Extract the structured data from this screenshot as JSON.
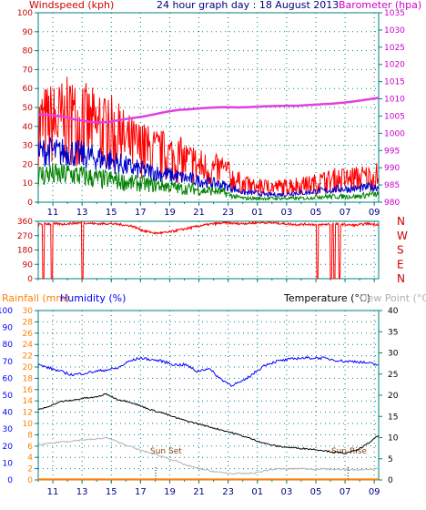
{
  "header": {
    "windspeed_label": "Windspeed (kph)",
    "title": "24 hour graph day : 18 August 2013",
    "barometer_label": "Barometer (hpa)"
  },
  "legend_bottom": {
    "rainfall": "Rainfall (mm)",
    "humidity": "Humidity (%)",
    "temperature": "Temperature (°C)",
    "dewpoint": "Dew Point (°C)"
  },
  "annotations": {
    "sun_set": "Sun Set",
    "sun_rise": "Sun Rise"
  },
  "colors": {
    "red": "#ff0000",
    "blue": "#0000cc",
    "green": "#008000",
    "magenta": "#e040e0",
    "axis_left": "#cc0000",
    "axis_right": "#cc00cc",
    "rain": "#ff8000",
    "humidity": "#0000ff",
    "temperature": "#000000",
    "dewpoint": "#b0b0b0",
    "grid": "#008080",
    "frame": "#008080",
    "hour_text": "#000080"
  },
  "chart_data": [
    {
      "type": "line",
      "title": "24 hour graph day : 18 August 2013",
      "x_ticks": [
        "11",
        "13",
        "15",
        "17",
        "19",
        "21",
        "23",
        "01",
        "03",
        "05",
        "07",
        "09"
      ],
      "y_left": {
        "label": "Windspeed (kph)",
        "ticks": [
          0,
          10,
          20,
          30,
          40,
          50,
          60,
          70,
          80,
          90,
          100
        ],
        "range": [
          0,
          100
        ]
      },
      "y_right": {
        "label": "Barometer (hpa)",
        "ticks": [
          980,
          985,
          990,
          995,
          1000,
          1005,
          1010,
          1015,
          1020,
          1025,
          1030,
          1035
        ],
        "range": [
          980,
          1035
        ]
      },
      "series": [
        {
          "name": "gust",
          "axis": "left",
          "color": "#ff0000",
          "values": [
            40,
            41,
            42,
            43,
            42,
            40,
            38,
            37,
            33,
            30,
            28,
            26,
            25,
            24,
            22,
            20,
            18,
            17,
            16,
            12,
            9,
            8,
            8,
            8,
            8,
            9,
            9,
            10,
            11,
            12,
            12,
            13,
            13,
            14
          ]
        },
        {
          "name": "average",
          "axis": "left",
          "color": "#0000cc",
          "values": [
            26,
            27,
            26,
            27,
            25,
            24,
            23,
            22,
            20,
            18,
            17,
            16,
            15,
            14,
            13,
            12,
            11,
            10,
            9,
            7,
            5,
            5,
            4,
            4,
            4,
            5,
            5,
            6,
            6,
            7,
            7,
            7,
            8,
            8
          ]
        },
        {
          "name": "wind",
          "axis": "left",
          "color": "#008000",
          "values": [
            14,
            15,
            14,
            15,
            14,
            13,
            12,
            12,
            11,
            10,
            10,
            9,
            9,
            8,
            7,
            7,
            6,
            6,
            5,
            3,
            2,
            2,
            2,
            2,
            2,
            2,
            2,
            3,
            3,
            3,
            3,
            3,
            4,
            4
          ]
        },
        {
          "name": "barometer",
          "axis": "right",
          "color": "#e040e0",
          "values": [
            1005.5,
            1005.3,
            1004.9,
            1004.1,
            1003.5,
            1003.1,
            1003.3,
            1003.9,
            1004.4,
            1004.9,
            1005.6,
            1006.3,
            1006.8,
            1007.0,
            1007.3,
            1007.5,
            1007.6,
            1007.5,
            1007.6,
            1007.8,
            1007.9,
            1008.0,
            1008.0,
            1008.2,
            1008.4,
            1008.6,
            1008.9,
            1009.3,
            1009.8,
            1010.3
          ]
        }
      ]
    },
    {
      "type": "scatter",
      "title": "",
      "x_ticks": [
        "11",
        "13",
        "15",
        "17",
        "19",
        "21",
        "23",
        "01",
        "03",
        "05",
        "07",
        "09"
      ],
      "y_left": {
        "ticks": [
          "360",
          "270",
          "180",
          "90",
          "0"
        ]
      },
      "y_right": {
        "ticks": [
          "N",
          "W",
          "S",
          "E",
          "N"
        ]
      },
      "series": [
        {
          "name": "direction",
          "color": "#ff0000",
          "values": [
            340,
            345,
            342,
            348,
            350,
            344,
            346,
            340,
            330,
            300,
            285,
            290,
            305,
            320,
            335,
            345,
            350,
            345,
            348,
            352,
            350,
            345,
            340,
            342,
            338,
            344,
            340,
            335,
            345,
            340
          ]
        }
      ]
    },
    {
      "type": "line",
      "title": "",
      "x_ticks": [
        "11",
        "13",
        "15",
        "17",
        "19",
        "21",
        "23",
        "01",
        "03",
        "05",
        "07",
        "09"
      ],
      "y_left_outer": {
        "label": "Humidity (%)",
        "ticks": [
          0,
          10,
          20,
          30,
          40,
          50,
          60,
          70,
          80,
          90,
          100
        ]
      },
      "y_left_inner": {
        "label": "Rainfall (mm)",
        "ticks": [
          0,
          2,
          4,
          6,
          8,
          10,
          12,
          14,
          16,
          18,
          20,
          22,
          24,
          26,
          28,
          30
        ]
      },
      "y_right": {
        "label": "Temperature (°C)",
        "ticks": [
          0,
          5,
          10,
          15,
          20,
          25,
          30,
          35,
          40
        ]
      },
      "series": [
        {
          "name": "humidity",
          "axis": "left_outer",
          "color": "#0000ff",
          "values": [
            68,
            66,
            64,
            62,
            63,
            64,
            65,
            66,
            70,
            72,
            71,
            70,
            68,
            68,
            64,
            66,
            60,
            56,
            58,
            63,
            68,
            70,
            71,
            72,
            72,
            72,
            71,
            70,
            70,
            69,
            68
          ]
        },
        {
          "name": "temperature",
          "axis": "right",
          "color": "#000000",
          "values": [
            16.5,
            17.5,
            18.5,
            18.8,
            19.3,
            19.5,
            20.3,
            19.0,
            18.5,
            17.5,
            16.5,
            15.8,
            14.8,
            14.0,
            13.3,
            12.6,
            11.9,
            11.2,
            10.4,
            9.5,
            8.6,
            8.0,
            7.7,
            7.5,
            7.3,
            7.0,
            6.6,
            6.3,
            6.9,
            8.5,
            10.5
          ]
        },
        {
          "name": "dew point",
          "axis": "right",
          "color": "#b0b0b0",
          "values": [
            8.3,
            8.6,
            9.0,
            9.2,
            9.5,
            9.6,
            10.0,
            9.0,
            8.0,
            7.0,
            6.3,
            5.5,
            4.6,
            3.5,
            2.8,
            2.2,
            1.8,
            1.5,
            1.5,
            1.6,
            2.2,
            2.6,
            2.6,
            2.7,
            2.6,
            2.6,
            2.5,
            2.5,
            2.4,
            2.4,
            2.8
          ]
        },
        {
          "name": "rainfall",
          "axis": "left_inner",
          "color": "#ff8000",
          "values": [
            0.1,
            0.1,
            0.1,
            0.1,
            0.1,
            0.1,
            0.1,
            0.1,
            0.1,
            0.1,
            0.1,
            0.1,
            0.1,
            0.1,
            0.1,
            0.1,
            0.1,
            0.1,
            0.1,
            0.1,
            0.1,
            0.1,
            0.1,
            0.1,
            0.1,
            0.1,
            0.1,
            0.1,
            0.1,
            0.1,
            0.1
          ]
        }
      ]
    }
  ]
}
